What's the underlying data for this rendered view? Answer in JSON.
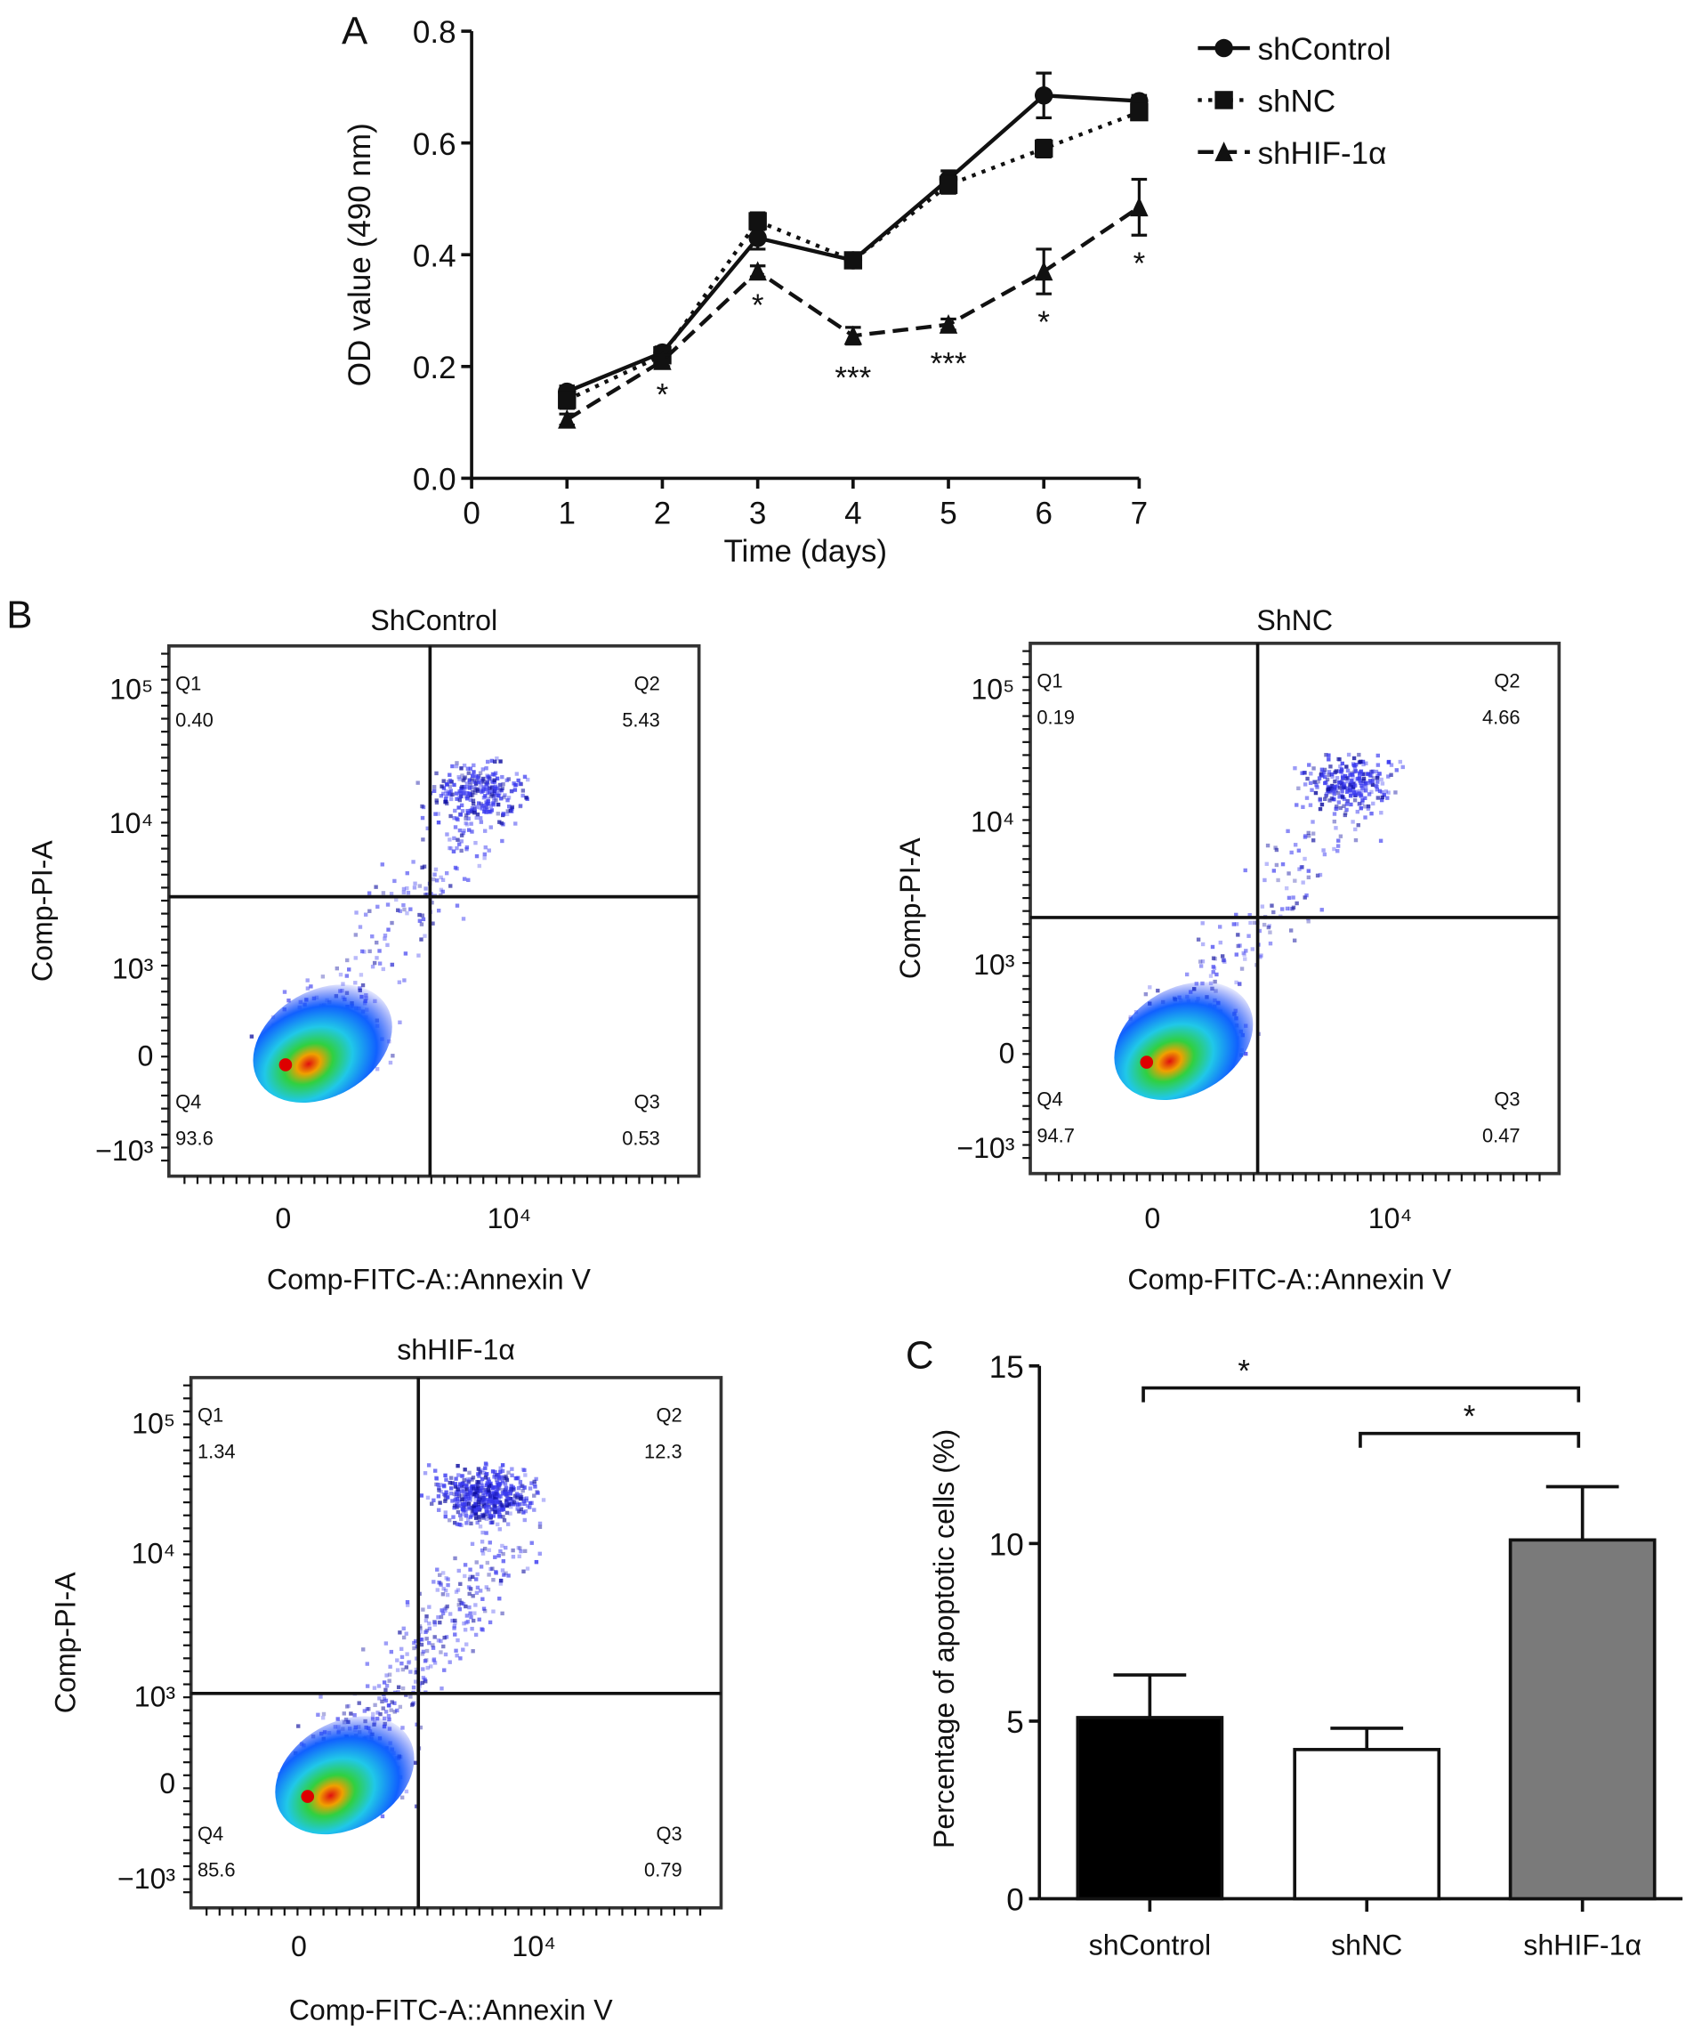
{
  "chart_data": [
    {
      "panel": "A",
      "type": "line",
      "xlabel": "Time (days)",
      "ylabel": "OD value (490 nm)",
      "xlim": [
        0,
        7
      ],
      "ylim": [
        0,
        0.8
      ],
      "x_ticks": [
        "0",
        "1",
        "2",
        "3",
        "4",
        "5",
        "6",
        "7"
      ],
      "y_ticks": [
        "0.0",
        "0.2",
        "0.4",
        "0.6",
        "0.8"
      ],
      "grid": false,
      "legend_position": "top-right",
      "x": [
        1,
        2,
        3,
        4,
        5,
        6,
        7
      ],
      "series": [
        {
          "name": "shControl",
          "style": "solid",
          "marker": "circle",
          "values": [
            0.155,
            0.225,
            0.43,
            0.39,
            0.535,
            0.685,
            0.675
          ],
          "errors": [
            0.01,
            0.01,
            0.02,
            0.01,
            0.015,
            0.04,
            0.01
          ]
        },
        {
          "name": "shNC",
          "style": "dotted",
          "marker": "square",
          "values": [
            0.14,
            0.22,
            0.46,
            0.39,
            0.525,
            0.59,
            0.655
          ],
          "errors": [
            0.015,
            0.01,
            0.015,
            0.01,
            0.015,
            0.015,
            0.01
          ]
        },
        {
          "name": "shHIF-1α",
          "style": "dashed",
          "marker": "triangle",
          "values": [
            0.105,
            0.21,
            0.37,
            0.255,
            0.275,
            0.37,
            0.485
          ],
          "errors": [
            0.01,
            0.01,
            0.01,
            0.015,
            0.01,
            0.04,
            0.05
          ]
        }
      ],
      "annotations": [
        {
          "x": 2,
          "text": "*"
        },
        {
          "x": 3,
          "text": "*"
        },
        {
          "x": 4,
          "text": "***"
        },
        {
          "x": 5,
          "text": "***"
        },
        {
          "x": 6,
          "text": "*"
        },
        {
          "x": 7,
          "text": "*"
        }
      ]
    },
    {
      "panel": "B",
      "type": "scatter",
      "xlabel": "Comp-FITC-A::Annexin V",
      "ylabel": "Comp-PI-A",
      "y_ticks": [
        "10⁵",
        "10⁴",
        "10³",
        "0",
        "−10³"
      ],
      "x_ticks": [
        "0",
        "10⁴"
      ],
      "plots": [
        {
          "title": "ShControl",
          "quadrants": {
            "Q1": "0.40",
            "Q2": "5.43",
            "Q3": "0.53",
            "Q4": "93.6"
          }
        },
        {
          "title": "ShNC",
          "quadrants": {
            "Q1": "0.19",
            "Q2": "4.66",
            "Q3": "0.47",
            "Q4": "94.7"
          }
        },
        {
          "title": "shHIF-1α",
          "quadrants": {
            "Q1": "1.34",
            "Q2": "12.3",
            "Q3": "0.79",
            "Q4": "85.6"
          }
        }
      ]
    },
    {
      "panel": "C",
      "type": "bar",
      "ylabel": "Percentage of apoptotic cells (%)",
      "xlabel": "",
      "ylim": [
        0,
        15
      ],
      "y_ticks": [
        "0",
        "5",
        "10",
        "15"
      ],
      "categories": [
        "shControl",
        "shNC",
        "shHIF-1α"
      ],
      "values": [
        5.1,
        4.2,
        10.1
      ],
      "errors": [
        1.2,
        0.6,
        1.5
      ],
      "bar_colors": [
        "#000000",
        "#ffffff",
        "#7a7a7a"
      ],
      "significance": [
        {
          "from": "shControl",
          "to": "shHIF-1α",
          "text": "*"
        },
        {
          "from": "shNC",
          "to": "shHIF-1α",
          "text": "*"
        }
      ]
    }
  ]
}
